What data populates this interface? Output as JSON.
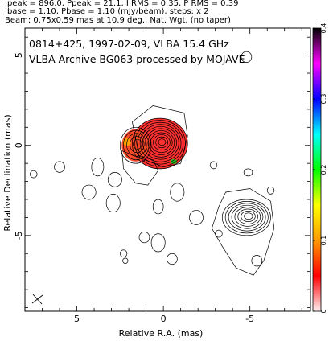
{
  "header": {
    "line1": "Ipeak = 896.0, Ppeak = 21.1, I RMS = 0.35, P RMS = 0.39",
    "line2": "Ibase = 1.10, Pbase = 1.10 (mJy/beam), steps: x 2",
    "line3": "Beam: 0.75x0.59 mas at 10.9 deg., Nat. Wgt. (no taper)"
  },
  "chart_data": {
    "type": "heatmap",
    "title_line1": "0814+425, 1997-02-09, VLBA  15.4 GHz",
    "title_line2": "VLBA Archive BG063 processed by MOJAVE",
    "xlabel": "Relative R.A. (mas)",
    "ylabel": "Relative Declination (mas)",
    "xlim": [
      8,
      -8.5
    ],
    "ylim": [
      -9.2,
      6.5
    ],
    "x_ticks": [
      5,
      0,
      -5
    ],
    "y_ticks": [
      5,
      0,
      -5
    ],
    "colorbar": {
      "min": 0,
      "max": 0.4,
      "ticks": [
        0,
        0.1,
        0.2,
        0.3,
        0.4
      ],
      "tick_labels": [
        "0",
        "0.1",
        "0.2",
        "0.3",
        "0.4"
      ],
      "colors": [
        "#fff0f0",
        "#ff0000",
        "#ff9900",
        "#ffff00",
        "#00ff00",
        "#00ffff",
        "#0000ff",
        "#ff00ff",
        "#000000"
      ]
    },
    "core": {
      "x": 0.2,
      "y": 0.1,
      "peak_jy_per_beam": 0.896
    },
    "contour_components": [
      {
        "x": 0.2,
        "y": 0.1,
        "rx": 1.6,
        "ry": 1.4,
        "levels": 11
      },
      {
        "x": 1.6,
        "y": 0.0,
        "rx": 0.9,
        "ry": 1.0,
        "levels": 5
      },
      {
        "x": -4.8,
        "y": -4.0,
        "rx": 1.4,
        "ry": 1.0,
        "levels": 8
      }
    ],
    "beam": {
      "major_mas": 0.75,
      "minor_mas": 0.59,
      "pa_deg": 10.9
    }
  }
}
